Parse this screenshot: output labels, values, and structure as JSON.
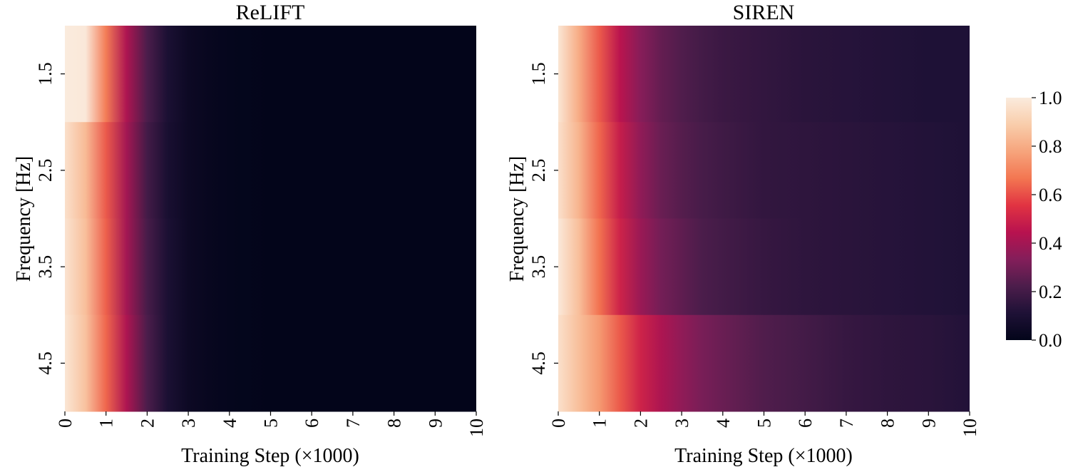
{
  "chart_data": [
    {
      "type": "heatmap",
      "title": "ReLIFT",
      "xlabel": "Training Step (×1000)",
      "ylabel": "Frequency [Hz]",
      "x_ticks": [
        "0",
        "1",
        "2",
        "3",
        "4",
        "5",
        "6",
        "7",
        "8",
        "9",
        "10"
      ],
      "x": [
        0,
        0.5,
        1,
        1.5,
        2,
        2.5,
        3,
        3.5,
        4,
        5,
        6,
        7,
        8,
        9,
        10
      ],
      "rows": [
        "1.5",
        "2.5",
        "3.5",
        "4.5"
      ],
      "series": [
        {
          "name": "1.5",
          "values": [
            1.0,
            0.99,
            0.68,
            0.42,
            0.22,
            0.1,
            0.04,
            0.02,
            0.01,
            0.0,
            0.0,
            0.0,
            0.0,
            0.0,
            0.0
          ]
        },
        {
          "name": "2.5",
          "values": [
            0.96,
            0.84,
            0.62,
            0.4,
            0.2,
            0.09,
            0.04,
            0.02,
            0.01,
            0.0,
            0.0,
            0.0,
            0.0,
            0.0,
            0.0
          ]
        },
        {
          "name": "3.5",
          "values": [
            0.97,
            0.85,
            0.63,
            0.4,
            0.21,
            0.1,
            0.04,
            0.02,
            0.01,
            0.0,
            0.0,
            0.0,
            0.0,
            0.0,
            0.0
          ]
        },
        {
          "name": "4.5",
          "values": [
            0.98,
            0.86,
            0.64,
            0.42,
            0.22,
            0.1,
            0.04,
            0.02,
            0.01,
            0.0,
            0.0,
            0.0,
            0.0,
            0.0,
            0.0
          ]
        }
      ],
      "zlim": [
        0,
        1
      ]
    },
    {
      "type": "heatmap",
      "title": "SIREN",
      "xlabel": "Training Step (×1000)",
      "ylabel": "Frequency [Hz]",
      "x_ticks": [
        "0",
        "1",
        "2",
        "3",
        "4",
        "5",
        "6",
        "7",
        "8",
        "9",
        "10"
      ],
      "x": [
        0,
        0.5,
        1,
        1.5,
        2,
        2.5,
        3,
        3.5,
        4,
        5,
        6,
        7,
        8,
        9,
        10
      ],
      "rows": [
        "1.5",
        "2.5",
        "3.5",
        "4.5"
      ],
      "series": [
        {
          "name": "1.5",
          "values": [
            0.98,
            0.8,
            0.62,
            0.45,
            0.34,
            0.27,
            0.23,
            0.2,
            0.18,
            0.16,
            0.14,
            0.13,
            0.12,
            0.11,
            0.11
          ]
        },
        {
          "name": "2.5",
          "values": [
            0.96,
            0.82,
            0.64,
            0.48,
            0.36,
            0.28,
            0.24,
            0.21,
            0.19,
            0.16,
            0.15,
            0.14,
            0.13,
            0.12,
            0.11
          ]
        },
        {
          "name": "3.5",
          "values": [
            0.99,
            0.85,
            0.66,
            0.5,
            0.38,
            0.3,
            0.26,
            0.22,
            0.2,
            0.17,
            0.15,
            0.14,
            0.13,
            0.12,
            0.11
          ]
        },
        {
          "name": "4.5",
          "values": [
            0.96,
            0.85,
            0.75,
            0.62,
            0.5,
            0.42,
            0.36,
            0.31,
            0.28,
            0.23,
            0.2,
            0.17,
            0.15,
            0.14,
            0.12
          ]
        }
      ],
      "zlim": [
        0,
        1
      ]
    }
  ],
  "colorbar": {
    "ticks": [
      "0.0",
      "0.2",
      "0.4",
      "0.6",
      "0.8",
      "1.0"
    ],
    "range": [
      0,
      1
    ],
    "colormap": "rocket",
    "colors": [
      "#03051a",
      "#1e1136",
      "#4c1d4b",
      "#841e5a",
      "#b8124f",
      "#e13342",
      "#f37651",
      "#f6a47c",
      "#f9cdab",
      "#faebdd"
    ]
  }
}
